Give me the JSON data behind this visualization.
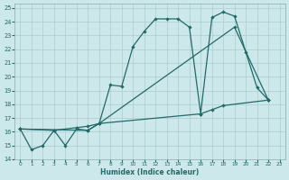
{
  "xlabel": "Humidex (Indice chaleur)",
  "bg_color": "#cce8ea",
  "grid_color": "#aacccc",
  "line_color": "#1e6b6b",
  "xlim": [
    -0.5,
    23.5
  ],
  "ylim": [
    14,
    25.3
  ],
  "xticks": [
    0,
    1,
    2,
    3,
    4,
    5,
    6,
    7,
    8,
    9,
    10,
    11,
    12,
    13,
    14,
    15,
    16,
    17,
    18,
    19,
    20,
    21,
    22,
    23
  ],
  "yticks": [
    14,
    15,
    16,
    17,
    18,
    19,
    20,
    21,
    22,
    23,
    24,
    25
  ],
  "line1": {
    "x": [
      0,
      1,
      2,
      3,
      4,
      5,
      6,
      7,
      8,
      9,
      10,
      11,
      12,
      13,
      14,
      15,
      16,
      17,
      18,
      19,
      20,
      21,
      22
    ],
    "y": [
      16.2,
      14.7,
      15.0,
      16.1,
      15.0,
      16.2,
      16.1,
      16.6,
      19.4,
      19.3,
      22.2,
      23.3,
      24.2,
      24.2,
      24.2,
      23.6,
      17.3,
      24.3,
      24.7,
      24.4,
      21.8,
      19.2,
      18.3
    ]
  },
  "line2": {
    "x": [
      0,
      3,
      5,
      6,
      7,
      19,
      22
    ],
    "y": [
      16.2,
      16.1,
      16.3,
      16.4,
      16.6,
      23.6,
      18.3
    ]
  },
  "line3": {
    "x": [
      0,
      6,
      7,
      16,
      17,
      18,
      22
    ],
    "y": [
      16.2,
      16.1,
      16.6,
      17.3,
      17.6,
      17.9,
      18.3
    ]
  }
}
